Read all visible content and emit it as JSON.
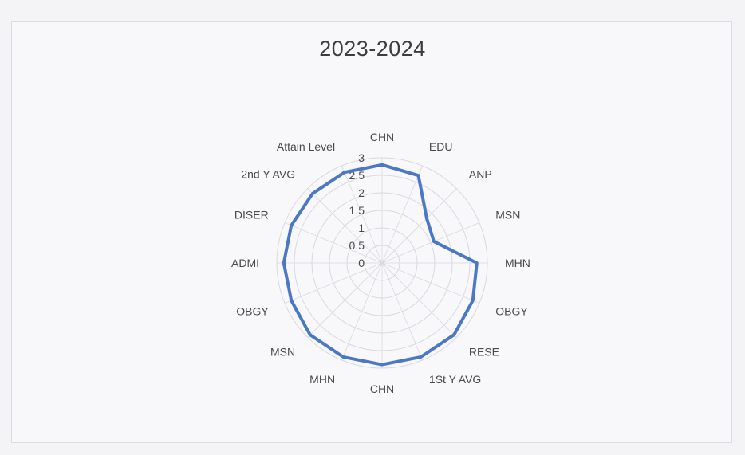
{
  "chart_data": {
    "type": "radar",
    "title": "2023-2024",
    "categories": [
      "CHN",
      "EDU",
      "ANP",
      "MSN",
      "MHN",
      "OBGY",
      "RESE",
      "1St Y AVG",
      "CHN",
      "MHN",
      "MSN",
      "OBGY",
      "ADMI",
      "DISER",
      "2nd Y AVG",
      "Attain Level"
    ],
    "series": [
      {
        "values": [
          2.8,
          2.7,
          1.8,
          1.6,
          2.7,
          2.8,
          2.9,
          2.9,
          2.9,
          2.9,
          2.9,
          2.8,
          2.8,
          2.8,
          2.8,
          2.8
        ]
      }
    ],
    "ticks": [
      "0",
      "0.5",
      "1",
      "1.5",
      "2",
      "2.5",
      "3"
    ],
    "rmin": 0,
    "rmax": 3,
    "grid": true,
    "legend": "none",
    "line_color": "#4a78c4",
    "grid_color": "#d9d9de"
  }
}
